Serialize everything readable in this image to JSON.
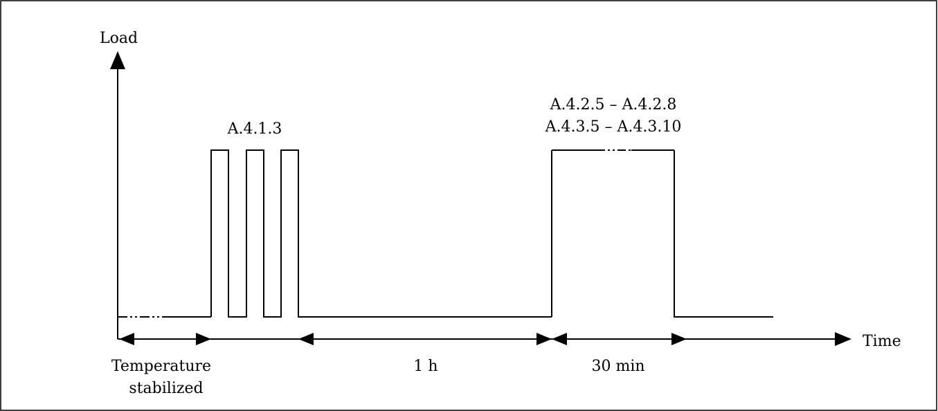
{
  "diagram": {
    "axes": {
      "y_label": "Load",
      "x_label": "Time"
    },
    "annotations": {
      "pulses_label": "A.4.1.3",
      "long_load_label_line1": "A.4.2.5 – A.4.2.8",
      "long_load_label_line2": "A.4.3.5 – A.4.3.10"
    },
    "intervals": {
      "stabilization_line1": "Temperature",
      "stabilization_line2": "stabilized",
      "rest_duration": "1 h",
      "load_duration": "30 min"
    }
  }
}
